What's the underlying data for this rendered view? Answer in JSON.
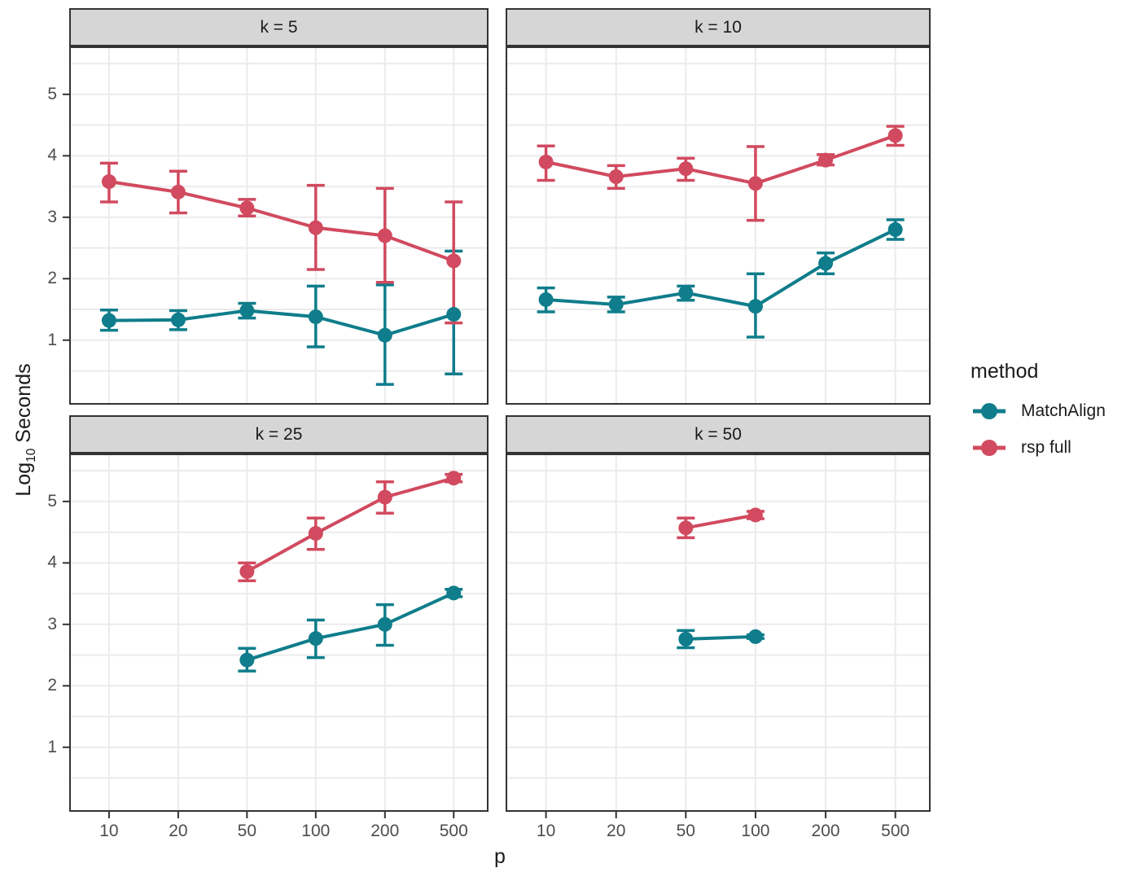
{
  "figure": {
    "y_axis": {
      "title_prefix": "Log",
      "title_sub": "10",
      "title_suffix": " Seconds",
      "tick_values": [
        1,
        2,
        3,
        4,
        5
      ]
    },
    "x_axis": {
      "title": "p",
      "tick_values": [
        10,
        20,
        50,
        100,
        200,
        500
      ]
    },
    "legend": {
      "title": "method",
      "entries": [
        {
          "label": "MatchAlign",
          "color": "#0f7d8b"
        },
        {
          "label": "rsp full",
          "color": "#d14a5f"
        }
      ]
    }
  },
  "chart_data": [
    {
      "type": "line",
      "facet": "k = 5",
      "x": [
        10,
        20,
        50,
        100,
        200,
        500
      ],
      "ylim": [
        -0.05,
        5.78
      ],
      "series": [
        {
          "name": "MatchAlign",
          "color": "#0f7d8b",
          "y": [
            1.32,
            1.33,
            1.48,
            1.38,
            1.08,
            1.42
          ],
          "ymin": [
            1.16,
            1.17,
            1.36,
            0.89,
            0.28,
            0.45
          ],
          "ymax": [
            1.49,
            1.48,
            1.6,
            1.88,
            1.9,
            2.45
          ]
        },
        {
          "name": "rsp full",
          "color": "#d14a5f",
          "y": [
            3.58,
            3.41,
            3.15,
            2.83,
            2.7,
            2.29
          ],
          "ymin": [
            3.25,
            3.07,
            3.02,
            2.15,
            1.94,
            1.28
          ],
          "ymax": [
            3.88,
            3.75,
            3.29,
            3.52,
            3.47,
            3.25
          ]
        }
      ]
    },
    {
      "type": "line",
      "facet": "k = 10",
      "x": [
        10,
        20,
        50,
        100,
        200,
        500
      ],
      "ylim": [
        -0.05,
        5.78
      ],
      "series": [
        {
          "name": "MatchAlign",
          "color": "#0f7d8b",
          "y": [
            1.66,
            1.58,
            1.77,
            1.55,
            2.25,
            2.8
          ],
          "ymin": [
            1.46,
            1.46,
            1.65,
            1.05,
            2.08,
            2.64
          ],
          "ymax": [
            1.85,
            1.7,
            1.88,
            2.08,
            2.42,
            2.96
          ]
        },
        {
          "name": "rsp full",
          "color": "#d14a5f",
          "y": [
            3.9,
            3.66,
            3.79,
            3.55,
            3.93,
            4.33
          ],
          "ymin": [
            3.6,
            3.47,
            3.6,
            2.95,
            3.85,
            4.17
          ],
          "ymax": [
            4.16,
            3.84,
            3.96,
            4.15,
            4.02,
            4.48
          ]
        }
      ]
    },
    {
      "type": "line",
      "facet": "k = 25",
      "x": [
        50,
        100,
        200,
        500
      ],
      "ylim": [
        -0.05,
        5.78
      ],
      "series": [
        {
          "name": "MatchAlign",
          "color": "#0f7d8b",
          "y": [
            2.42,
            2.77,
            3.0,
            3.51
          ],
          "ymin": [
            2.24,
            2.46,
            2.66,
            3.45
          ],
          "ymax": [
            2.61,
            3.07,
            3.32,
            3.57
          ]
        },
        {
          "name": "rsp full",
          "color": "#d14a5f",
          "y": [
            3.86,
            4.48,
            5.07,
            5.38
          ],
          "ymin": [
            3.71,
            4.22,
            4.81,
            5.32
          ],
          "ymax": [
            4.0,
            4.73,
            5.32,
            5.44
          ]
        }
      ]
    },
    {
      "type": "line",
      "facet": "k = 50",
      "x": [
        50,
        100
      ],
      "ylim": [
        -0.05,
        5.78
      ],
      "series": [
        {
          "name": "MatchAlign",
          "color": "#0f7d8b",
          "y": [
            2.76,
            2.8
          ],
          "ymin": [
            2.62,
            2.77
          ],
          "ymax": [
            2.9,
            2.83
          ]
        },
        {
          "name": "rsp full",
          "color": "#d14a5f",
          "y": [
            4.57,
            4.78
          ],
          "ymin": [
            4.41,
            4.72
          ],
          "ymax": [
            4.73,
            4.84
          ]
        }
      ]
    }
  ],
  "style": {
    "grid_color": "#ebebeb",
    "panel_border_color": "#333333",
    "strip_bg_color": "#d6d6d6",
    "tick_color": "#333333",
    "tick_text_color": "#4d4d4d"
  }
}
